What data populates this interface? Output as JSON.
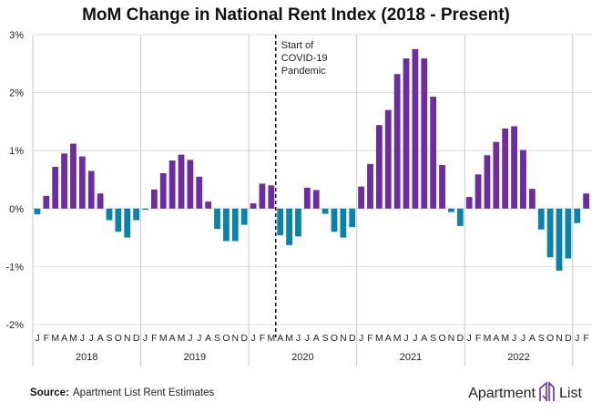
{
  "chart_data": {
    "type": "bar",
    "title": "MoM Change in National Rent Index (2018 - Present)",
    "xlabel": "",
    "ylabel": "",
    "ylim": [
      -2,
      3
    ],
    "y_ticks": [
      "3%",
      "2%",
      "1%",
      "0%",
      "-1%",
      "-2%"
    ],
    "y_tick_values": [
      3,
      2,
      1,
      0,
      -1,
      -2
    ],
    "grid": true,
    "years": [
      "2018",
      "2019",
      "2020",
      "2021",
      "2022"
    ],
    "month_labels": [
      "J",
      "F",
      "M",
      "A",
      "M",
      "J",
      "J",
      "A",
      "S",
      "O",
      "N",
      "D"
    ],
    "categories": [
      "2018-01",
      "2018-02",
      "2018-03",
      "2018-04",
      "2018-05",
      "2018-06",
      "2018-07",
      "2018-08",
      "2018-09",
      "2018-10",
      "2018-11",
      "2018-12",
      "2019-01",
      "2019-02",
      "2019-03",
      "2019-04",
      "2019-05",
      "2019-06",
      "2019-07",
      "2019-08",
      "2019-09",
      "2019-10",
      "2019-11",
      "2019-12",
      "2020-01",
      "2020-02",
      "2020-03",
      "2020-04",
      "2020-05",
      "2020-06",
      "2020-07",
      "2020-08",
      "2020-09",
      "2020-10",
      "2020-11",
      "2020-12",
      "2021-01",
      "2021-02",
      "2021-03",
      "2021-04",
      "2021-05",
      "2021-06",
      "2021-07",
      "2021-08",
      "2021-09",
      "2021-10",
      "2021-11",
      "2021-12",
      "2022-01",
      "2022-02",
      "2022-03",
      "2022-04",
      "2022-05",
      "2022-06",
      "2022-07",
      "2022-08",
      "2022-09",
      "2022-10",
      "2022-11",
      "2022-12",
      "2023-01",
      "2023-02"
    ],
    "values": [
      -0.1,
      0.22,
      0.72,
      0.95,
      1.12,
      0.9,
      0.65,
      0.26,
      -0.2,
      -0.4,
      -0.5,
      -0.2,
      -0.02,
      0.33,
      0.61,
      0.83,
      0.93,
      0.84,
      0.55,
      0.12,
      -0.35,
      -0.56,
      -0.56,
      -0.28,
      0.09,
      0.43,
      0.4,
      -0.46,
      -0.63,
      -0.48,
      0.36,
      0.32,
      -0.09,
      -0.4,
      -0.5,
      -0.32,
      0.38,
      0.77,
      1.44,
      1.7,
      2.32,
      2.59,
      2.75,
      2.59,
      1.93,
      0.75,
      -0.06,
      -0.3,
      0.2,
      0.59,
      0.92,
      1.15,
      1.38,
      1.42,
      1.01,
      0.34,
      -0.36,
      -0.84,
      -1.07,
      -0.86,
      -0.25,
      0.26
    ],
    "annotation": {
      "lines": [
        "Start of",
        "COVID-19",
        "Pandemic"
      ],
      "after_category": "2020-03"
    },
    "colors": {
      "positive": "#6b2d9f",
      "negative": "#0b82a8",
      "grid": "#dcdcdc",
      "divider": "#c8c8c8"
    }
  },
  "footer": {
    "source_label": "Source:",
    "source_text": "Apartment List Rent Estimates",
    "logo_text": "Apartment",
    "logo_text2": "List"
  }
}
